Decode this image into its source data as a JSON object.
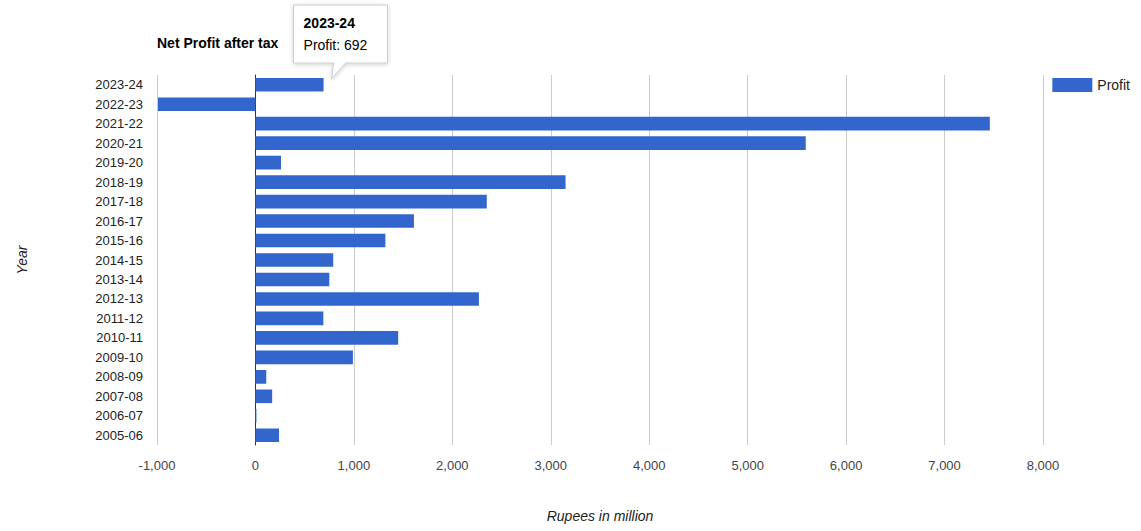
{
  "chart_data": {
    "type": "bar",
    "orientation": "horizontal",
    "title": "Net Profit after tax",
    "x_label": "Rupees in million",
    "y_label": "Year",
    "categories": [
      "2023-24",
      "2022-23",
      "2021-22",
      "2020-21",
      "2019-20",
      "2018-19",
      "2017-18",
      "2016-17",
      "2015-16",
      "2014-15",
      "2013-14",
      "2012-13",
      "2011-12",
      "2010-11",
      "2009-10",
      "2008-09",
      "2007-08",
      "2006-07",
      "2005-06"
    ],
    "series": [
      {
        "name": "Profit",
        "color": "#3366cc",
        "values": [
          692,
          -990,
          7460,
          5590,
          260,
          3150,
          2350,
          1610,
          1320,
          790,
          750,
          2270,
          690,
          1450,
          990,
          110,
          170,
          10,
          240
        ]
      }
    ],
    "xlim": [
      -1000,
      8000
    ],
    "xticks": [
      {
        "value": -1000,
        "label": "-1,000"
      },
      0,
      {
        "value": 1000,
        "label": "1,000"
      },
      {
        "value": 2000,
        "label": "2,000"
      },
      {
        "value": 3000,
        "label": "3,000"
      },
      {
        "value": 4000,
        "label": "4,000"
      },
      {
        "value": 5000,
        "label": "5,000"
      },
      {
        "value": 6000,
        "label": "6,000"
      },
      {
        "value": 7000,
        "label": "7,000"
      },
      {
        "value": 8000,
        "label": "8,000"
      }
    ],
    "grid": true,
    "legend": "top-right",
    "annotation": {
      "category": "2023-24",
      "value": 692,
      "title": "2023-24",
      "text": "Profit: 692"
    }
  }
}
